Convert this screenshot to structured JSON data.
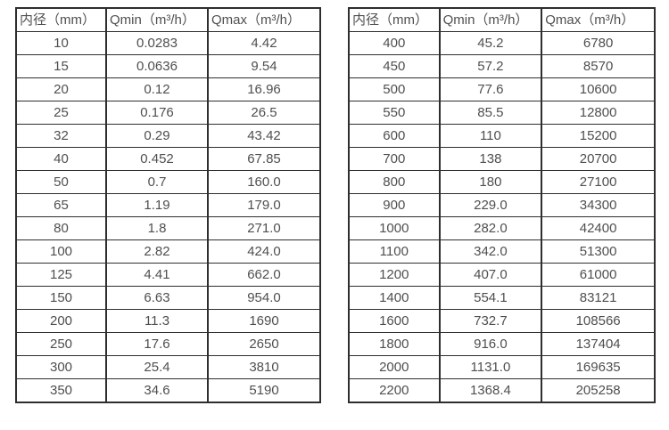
{
  "colors": {
    "background": "#ffffff",
    "table_border": "#2e2e2e",
    "text": "#4f4f4f"
  },
  "tables": [
    {
      "name": "small-diameters",
      "headers": {
        "diameter": "内径（mm）",
        "qmin": "Qmin（m³/h）",
        "qmax": "Qmax（m³/h）"
      },
      "rows": [
        [
          "10",
          "0.0283",
          "4.42"
        ],
        [
          "15",
          "0.0636",
          "9.54"
        ],
        [
          "20",
          "0.12",
          "16.96"
        ],
        [
          "25",
          "0.176",
          "26.5"
        ],
        [
          "32",
          "0.29",
          "43.42"
        ],
        [
          "40",
          "0.452",
          "67.85"
        ],
        [
          "50",
          "0.7",
          "160.0"
        ],
        [
          "65",
          "1.19",
          "179.0"
        ],
        [
          "80",
          "1.8",
          "271.0"
        ],
        [
          "100",
          "2.82",
          "424.0"
        ],
        [
          "125",
          "4.41",
          "662.0"
        ],
        [
          "150",
          "6.63",
          "954.0"
        ],
        [
          "200",
          "11.3",
          "1690"
        ],
        [
          "250",
          "17.6",
          "2650"
        ],
        [
          "300",
          "25.4",
          "3810"
        ],
        [
          "350",
          "34.6",
          "5190"
        ]
      ]
    },
    {
      "name": "large-diameters",
      "headers": {
        "diameter": "内径（mm）",
        "qmin": "Qmin（m³/h）",
        "qmax": "Qmax（m³/h）"
      },
      "rows": [
        [
          "400",
          "45.2",
          "6780"
        ],
        [
          "450",
          "57.2",
          "8570"
        ],
        [
          "500",
          "77.6",
          "10600"
        ],
        [
          "550",
          "85.5",
          "12800"
        ],
        [
          "600",
          "110",
          "15200"
        ],
        [
          "700",
          "138",
          "20700"
        ],
        [
          "800",
          "180",
          "27100"
        ],
        [
          "900",
          "229.0",
          "34300"
        ],
        [
          "1000",
          "282.0",
          "42400"
        ],
        [
          "1100",
          "342.0",
          "51300"
        ],
        [
          "1200",
          "407.0",
          "61000"
        ],
        [
          "1400",
          "554.1",
          "83121"
        ],
        [
          "1600",
          "732.7",
          "108566"
        ],
        [
          "1800",
          "916.0",
          "137404"
        ],
        [
          "2000",
          "1131.0",
          "169635"
        ],
        [
          "2200",
          "1368.4",
          "205258"
        ]
      ]
    }
  ]
}
